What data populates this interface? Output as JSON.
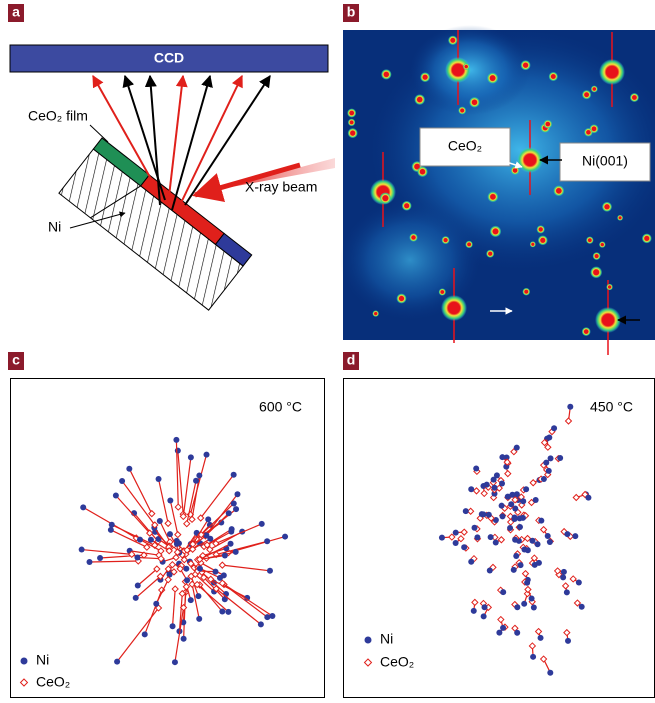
{
  "panel_a": {
    "label": "a",
    "detector": "CCD",
    "film": "CeO₂ film",
    "beam": "X-ray beam",
    "substrate": "Ni"
  },
  "panel_b": {
    "label": "b",
    "film": "CeO₂",
    "substrate": "Ni(001)"
  },
  "panel_c": {
    "label": "c",
    "temperature": "600 °C",
    "legend": [
      "Ni",
      "CeO₂"
    ]
  },
  "panel_d": {
    "label": "d",
    "temperature": "450 °C",
    "legend": [
      "Ni",
      "CeO₂"
    ]
  }
}
